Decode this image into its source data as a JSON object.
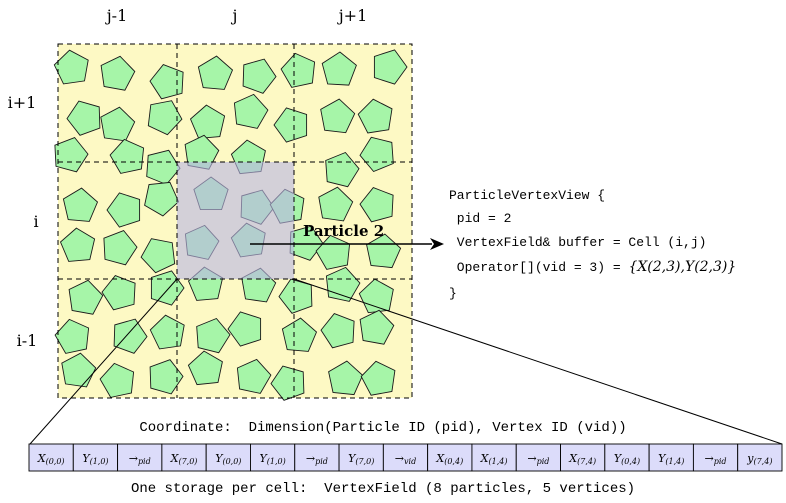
{
  "columns": [
    "j-1",
    "j",
    "j+1"
  ],
  "rows": [
    "i+1",
    "i",
    "i-1"
  ],
  "highlight_label": "Particle 2",
  "code": {
    "line1": "ParticleVertexView {",
    "line2": " pid = 2",
    "line3": " VertexField& buffer = Cell (i,j)",
    "line4_prefix": " Operator[](vid = 3) = ",
    "line4_math": "{X(2,3),Y(2,3)}",
    "line5": "}"
  },
  "coordinate_caption": "Coordinate:  Dimension(Particle ID (pid), Vertex ID (vid))",
  "storage_caption": "One storage per cell:  VertexField (8 particles, 5 vertices)",
  "storage_cells": [
    {
      "base": "X",
      "sub": "(0,0)"
    },
    {
      "base": "Y",
      "sub": "(1,0)"
    },
    {
      "base": "→",
      "sub": "pid"
    },
    {
      "base": "X",
      "sub": "(7,0)"
    },
    {
      "base": "Y",
      "sub": "(0,0)"
    },
    {
      "base": "Y",
      "sub": "(1,0)"
    },
    {
      "base": "→",
      "sub": "pid"
    },
    {
      "base": "Y",
      "sub": "(7,0)"
    },
    {
      "base": "→",
      "sub": "vid"
    },
    {
      "base": "X",
      "sub": "(0,4)"
    },
    {
      "base": "X",
      "sub": "(1,4)"
    },
    {
      "base": "→",
      "sub": "pid"
    },
    {
      "base": "X",
      "sub": "(7,4)"
    },
    {
      "base": "Y",
      "sub": "(0,4)"
    },
    {
      "base": "Y",
      "sub": "(1,4)"
    },
    {
      "base": "→",
      "sub": "pid"
    },
    {
      "base": "y",
      "sub": "(7,4)"
    }
  ],
  "colors": {
    "grid_fill": "#fdf9c4",
    "particle_fill": "#a6f5a8",
    "highlight_fill": "#b9b6e3",
    "storage_fill": "#dcdcfa"
  }
}
